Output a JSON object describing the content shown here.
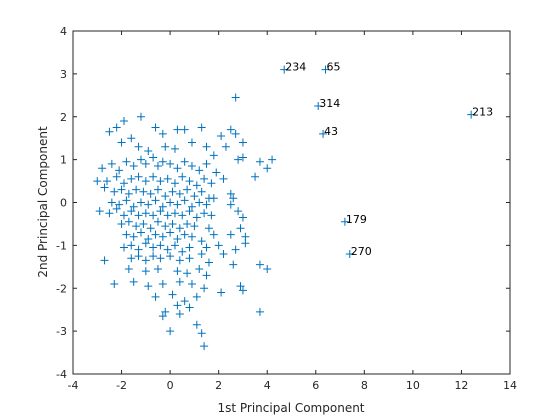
{
  "chart_data": {
    "type": "scatter",
    "title": "",
    "xlabel": "1st Principal Component",
    "ylabel": "2nd Principal Component",
    "xlim": [
      -4,
      14
    ],
    "ylim": [
      -4,
      4
    ],
    "xticks": [
      -4,
      -2,
      0,
      2,
      4,
      6,
      8,
      10,
      12,
      14
    ],
    "yticks": [
      -4,
      -3,
      -2,
      -1,
      0,
      1,
      2,
      3,
      4
    ],
    "xtick_labels": [
      "-4",
      "-2",
      "0",
      "2",
      "4",
      "6",
      "8",
      "10",
      "12",
      "14"
    ],
    "ytick_labels": [
      "-4",
      "-3",
      "-2",
      "-1",
      "0",
      "1",
      "2",
      "3",
      "4"
    ],
    "grid": false,
    "marker": "+",
    "color": "#0072BD",
    "annotations": [
      {
        "label": "234",
        "x": 4.7,
        "y": 3.1
      },
      {
        "label": "65",
        "x": 6.4,
        "y": 3.1
      },
      {
        "label": "314",
        "x": 6.1,
        "y": 2.25
      },
      {
        "label": "213",
        "x": 12.4,
        "y": 2.05
      },
      {
        "label": "43",
        "x": 6.3,
        "y": 1.6
      },
      {
        "label": "179",
        "x": 7.2,
        "y": -0.45
      },
      {
        "label": "270",
        "x": 7.4,
        "y": -1.2
      }
    ],
    "points": [
      [
        4.7,
        3.1
      ],
      [
        6.4,
        3.1
      ],
      [
        6.1,
        2.25
      ],
      [
        12.4,
        2.05
      ],
      [
        6.3,
        1.6
      ],
      [
        7.2,
        -0.45
      ],
      [
        7.4,
        -1.2
      ],
      [
        2.7,
        2.45
      ],
      [
        -2.2,
        1.75
      ],
      [
        -2.5,
        1.65
      ],
      [
        -1.9,
        1.9
      ],
      [
        -1.2,
        2.0
      ],
      [
        -0.6,
        1.75
      ],
      [
        -0.3,
        1.6
      ],
      [
        0.3,
        1.7
      ],
      [
        0.6,
        1.7
      ],
      [
        1.3,
        1.75
      ],
      [
        2.5,
        1.7
      ],
      [
        2.1,
        1.55
      ],
      [
        2.7,
        1.6
      ],
      [
        3.0,
        1.4
      ],
      [
        -1.6,
        1.5
      ],
      [
        -2.0,
        1.4
      ],
      [
        -1.3,
        1.3
      ],
      [
        -0.9,
        1.2
      ],
      [
        -0.2,
        1.3
      ],
      [
        0.2,
        1.25
      ],
      [
        0.9,
        1.4
      ],
      [
        1.5,
        1.3
      ],
      [
        2.3,
        1.3
      ],
      [
        1.8,
        1.1
      ],
      [
        2.8,
        1.0
      ],
      [
        3.0,
        1.05
      ],
      [
        3.7,
        0.95
      ],
      [
        4.2,
        1.0
      ],
      [
        4.0,
        0.8
      ],
      [
        3.5,
        0.6
      ],
      [
        -2.8,
        0.8
      ],
      [
        -2.4,
        0.9
      ],
      [
        -2.1,
        0.75
      ],
      [
        -1.8,
        0.95
      ],
      [
        -1.5,
        0.85
      ],
      [
        -1.2,
        1.0
      ],
      [
        -1.0,
        0.9
      ],
      [
        -0.7,
        1.05
      ],
      [
        -0.5,
        0.85
      ],
      [
        -0.3,
        0.95
      ],
      [
        0.0,
        0.9
      ],
      [
        0.3,
        0.8
      ],
      [
        0.6,
        0.95
      ],
      [
        0.9,
        0.85
      ],
      [
        1.2,
        0.75
      ],
      [
        1.5,
        0.9
      ],
      [
        1.9,
        0.7
      ],
      [
        -2.6,
        0.5
      ],
      [
        -2.2,
        0.6
      ],
      [
        -1.9,
        0.45
      ],
      [
        -1.6,
        0.55
      ],
      [
        -1.3,
        0.6
      ],
      [
        -1.0,
        0.5
      ],
      [
        -0.7,
        0.6
      ],
      [
        -0.4,
        0.5
      ],
      [
        -0.1,
        0.55
      ],
      [
        0.2,
        0.45
      ],
      [
        0.5,
        0.6
      ],
      [
        0.8,
        0.5
      ],
      [
        1.1,
        0.4
      ],
      [
        1.4,
        0.55
      ],
      [
        1.7,
        0.45
      ],
      [
        2.2,
        0.55
      ],
      [
        -3.0,
        0.5
      ],
      [
        -2.7,
        0.35
      ],
      [
        -2.3,
        0.25
      ],
      [
        -2.0,
        0.3
      ],
      [
        -1.7,
        0.2
      ],
      [
        -1.4,
        0.3
      ],
      [
        -1.1,
        0.25
      ],
      [
        -0.8,
        0.2
      ],
      [
        -0.5,
        0.3
      ],
      [
        -0.2,
        0.15
      ],
      [
        0.1,
        0.25
      ],
      [
        0.4,
        0.2
      ],
      [
        0.7,
        0.3
      ],
      [
        1.0,
        0.15
      ],
      [
        1.3,
        0.25
      ],
      [
        1.6,
        0.1
      ],
      [
        2.5,
        0.2
      ],
      [
        2.6,
        0.1
      ],
      [
        -2.4,
        0.0
      ],
      [
        -2.1,
        -0.05
      ],
      [
        -1.8,
        0.05
      ],
      [
        -1.5,
        -0.1
      ],
      [
        -1.2,
        0.0
      ],
      [
        -0.9,
        -0.05
      ],
      [
        -0.6,
        0.05
      ],
      [
        -0.3,
        -0.1
      ],
      [
        0.0,
        0.0
      ],
      [
        0.3,
        -0.05
      ],
      [
        0.6,
        0.05
      ],
      [
        0.9,
        -0.1
      ],
      [
        1.2,
        0.0
      ],
      [
        1.5,
        -0.05
      ],
      [
        1.8,
        0.1
      ],
      [
        2.5,
        -0.05
      ],
      [
        -2.9,
        -0.2
      ],
      [
        -2.5,
        -0.25
      ],
      [
        -2.2,
        -0.15
      ],
      [
        -1.9,
        -0.3
      ],
      [
        -1.6,
        -0.2
      ],
      [
        -1.3,
        -0.3
      ],
      [
        -1.0,
        -0.25
      ],
      [
        -0.7,
        -0.3
      ],
      [
        -0.4,
        -0.2
      ],
      [
        -0.1,
        -0.3
      ],
      [
        0.2,
        -0.25
      ],
      [
        0.5,
        -0.3
      ],
      [
        0.8,
        -0.2
      ],
      [
        1.1,
        -0.35
      ],
      [
        1.4,
        -0.25
      ],
      [
        1.7,
        -0.3
      ],
      [
        3.0,
        -0.35
      ],
      [
        2.8,
        -0.2
      ],
      [
        -2.0,
        -0.5
      ],
      [
        -1.7,
        -0.45
      ],
      [
        -1.4,
        -0.55
      ],
      [
        -1.1,
        -0.5
      ],
      [
        -0.8,
        -0.6
      ],
      [
        -0.5,
        -0.45
      ],
      [
        -0.2,
        -0.55
      ],
      [
        0.1,
        -0.5
      ],
      [
        0.4,
        -0.6
      ],
      [
        0.7,
        -0.5
      ],
      [
        1.0,
        -0.55
      ],
      [
        1.6,
        -0.6
      ],
      [
        2.5,
        -0.75
      ],
      [
        3.1,
        -0.8
      ],
      [
        2.9,
        -0.6
      ],
      [
        -1.8,
        -0.75
      ],
      [
        -1.5,
        -0.8
      ],
      [
        -1.2,
        -0.7
      ],
      [
        -0.9,
        -0.85
      ],
      [
        -0.6,
        -0.75
      ],
      [
        -0.3,
        -0.8
      ],
      [
        0.0,
        -0.7
      ],
      [
        0.3,
        -0.85
      ],
      [
        0.6,
        -0.75
      ],
      [
        0.9,
        -0.8
      ],
      [
        1.3,
        -0.9
      ],
      [
        1.8,
        -0.75
      ],
      [
        -1.9,
        -1.05
      ],
      [
        -1.6,
        -1.0
      ],
      [
        -1.3,
        -1.1
      ],
      [
        -1.0,
        -0.95
      ],
      [
        -0.7,
        -1.05
      ],
      [
        -0.4,
        -1.0
      ],
      [
        -0.1,
        -1.1
      ],
      [
        0.2,
        -1.0
      ],
      [
        0.5,
        -1.15
      ],
      [
        0.8,
        -1.05
      ],
      [
        1.5,
        -1.05
      ],
      [
        2.0,
        -1.0
      ],
      [
        2.7,
        -1.1
      ],
      [
        3.1,
        -0.95
      ],
      [
        -1.6,
        -1.3
      ],
      [
        -1.3,
        -1.25
      ],
      [
        -1.0,
        -1.35
      ],
      [
        -0.7,
        -1.25
      ],
      [
        -0.4,
        -1.3
      ],
      [
        0.0,
        -1.25
      ],
      [
        0.4,
        -1.35
      ],
      [
        0.8,
        -1.3
      ],
      [
        1.3,
        -1.2
      ],
      [
        1.6,
        -1.4
      ],
      [
        2.2,
        -1.2
      ],
      [
        2.6,
        -1.45
      ],
      [
        3.7,
        -1.45
      ],
      [
        4.0,
        -1.55
      ],
      [
        -2.7,
        -1.35
      ],
      [
        -1.7,
        -1.55
      ],
      [
        -1.0,
        -1.6
      ],
      [
        -0.5,
        -1.55
      ],
      [
        0.3,
        -1.6
      ],
      [
        0.7,
        -1.65
      ],
      [
        1.2,
        -1.55
      ],
      [
        1.5,
        -1.7
      ],
      [
        -2.3,
        -1.9
      ],
      [
        -1.5,
        -1.85
      ],
      [
        -0.9,
        -1.95
      ],
      [
        -0.3,
        -1.9
      ],
      [
        0.4,
        -1.85
      ],
      [
        0.9,
        -1.9
      ],
      [
        1.4,
        -2.0
      ],
      [
        2.1,
        -2.1
      ],
      [
        2.9,
        -1.95
      ],
      [
        3.0,
        -2.05
      ],
      [
        -0.6,
        -2.2
      ],
      [
        0.1,
        -2.15
      ],
      [
        0.6,
        -2.3
      ],
      [
        1.1,
        -2.2
      ],
      [
        0.3,
        -2.4
      ],
      [
        0.8,
        -2.45
      ],
      [
        -0.2,
        -2.55
      ],
      [
        3.7,
        -2.55
      ],
      [
        -0.3,
        -2.65
      ],
      [
        0.4,
        -2.6
      ],
      [
        1.1,
        -2.85
      ],
      [
        0.0,
        -3.0
      ],
      [
        1.3,
        -3.05
      ],
      [
        1.4,
        -3.35
      ]
    ]
  }
}
